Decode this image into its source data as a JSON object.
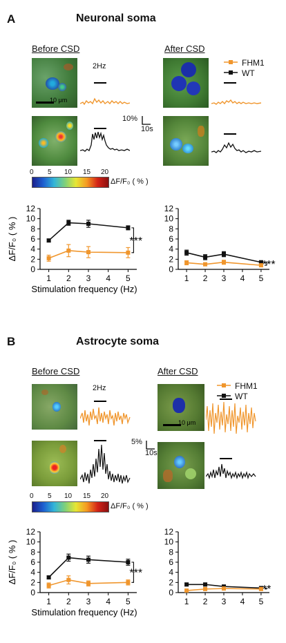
{
  "panels": [
    {
      "letter": "A",
      "title": "Neuronal soma",
      "before_label": "Before CSD",
      "after_label": "After CSD",
      "stim_label": "2Hz",
      "scalebar_y": "10%",
      "scalebar_x": "10s",
      "micro_scale": "10 μm",
      "legend": [
        "FHM1",
        "WT"
      ],
      "colorbar": {
        "ticks": [
          "0",
          "5",
          "10",
          "15",
          "20"
        ],
        "label": "ΔF/F₀ ( % )"
      }
    },
    {
      "letter": "B",
      "title": "Astrocyte soma",
      "before_label": "Before CSD",
      "after_label": "After CSD",
      "stim_label": "2Hz",
      "scalebar_y": "5%",
      "scalebar_x": "10s",
      "micro_scale": "10 μm",
      "legend": [
        "FHM1",
        "WT"
      ],
      "colorbar": {
        "ticks": [
          "0",
          "5",
          "10",
          "15",
          "20"
        ],
        "label": "ΔF/F₀ ( % )"
      }
    }
  ],
  "colors": {
    "FHM1": "#f0962d",
    "WT": "#111111"
  },
  "chart_data": [
    {
      "type": "line",
      "panel": "A",
      "state": "Before CSD",
      "x": [
        1,
        2,
        3,
        5
      ],
      "series": [
        {
          "name": "WT",
          "values": [
            5.7,
            9.2,
            9.0,
            8.2
          ],
          "err": [
            0.3,
            0.5,
            0.7,
            0.4
          ]
        },
        {
          "name": "FHM1",
          "values": [
            2.2,
            3.7,
            3.4,
            3.3
          ],
          "err": [
            0.6,
            1.2,
            1.1,
            1.0
          ]
        }
      ],
      "xlabel": "Stimulation frequency (Hz)",
      "ylabel": "ΔF/F₀ ( % )",
      "ylim": [
        0,
        12
      ],
      "yticks": [
        0,
        2,
        4,
        6,
        8,
        10,
        12
      ],
      "xticks": [
        1,
        2,
        3,
        4,
        5
      ],
      "significance": "***"
    },
    {
      "type": "line",
      "panel": "A",
      "state": "After CSD",
      "x": [
        1,
        2,
        3,
        5
      ],
      "series": [
        {
          "name": "WT",
          "values": [
            3.3,
            2.4,
            3.0,
            1.4
          ],
          "err": [
            0.5,
            0.5,
            0.5,
            0.3
          ]
        },
        {
          "name": "FHM1",
          "values": [
            1.3,
            1.0,
            1.4,
            0.8
          ],
          "err": [
            0.4,
            0.3,
            0.4,
            0.3
          ]
        }
      ],
      "xlabel": "",
      "ylabel": "",
      "ylim": [
        0,
        12
      ],
      "yticks": [
        0,
        2,
        4,
        6,
        8,
        10,
        12
      ],
      "xticks": [
        1,
        2,
        3,
        4,
        5
      ],
      "significance": "***"
    },
    {
      "type": "line",
      "panel": "B",
      "state": "Before CSD",
      "x": [
        1,
        2,
        3,
        5
      ],
      "series": [
        {
          "name": "WT",
          "values": [
            3.0,
            6.9,
            6.5,
            6.0
          ],
          "err": [
            0.3,
            0.7,
            0.7,
            0.6
          ]
        },
        {
          "name": "FHM1",
          "values": [
            1.4,
            2.5,
            1.8,
            2.0
          ],
          "err": [
            0.5,
            0.8,
            0.5,
            0.5
          ]
        }
      ],
      "xlabel": "Stimulation frequency (Hz)",
      "ylabel": "ΔF/F₀ ( % )",
      "ylim": [
        0,
        12
      ],
      "yticks": [
        0,
        2,
        4,
        6,
        8,
        10,
        12
      ],
      "xticks": [
        1,
        2,
        3,
        4,
        5
      ],
      "significance": "***"
    },
    {
      "type": "line",
      "panel": "B",
      "state": "After CSD",
      "x": [
        1,
        2,
        3,
        5
      ],
      "series": [
        {
          "name": "WT",
          "values": [
            1.6,
            1.6,
            1.2,
            0.9
          ],
          "err": [
            0.3,
            0.3,
            0.2,
            0.2
          ]
        },
        {
          "name": "FHM1",
          "values": [
            0.4,
            0.7,
            0.8,
            0.7
          ],
          "err": [
            0.2,
            0.2,
            0.2,
            0.2
          ]
        }
      ],
      "xlabel": "",
      "ylabel": "",
      "ylim": [
        0,
        12
      ],
      "yticks": [
        0,
        2,
        4,
        6,
        8,
        10,
        12
      ],
      "xticks": [
        1,
        2,
        3,
        4,
        5
      ],
      "significance": "**"
    }
  ]
}
